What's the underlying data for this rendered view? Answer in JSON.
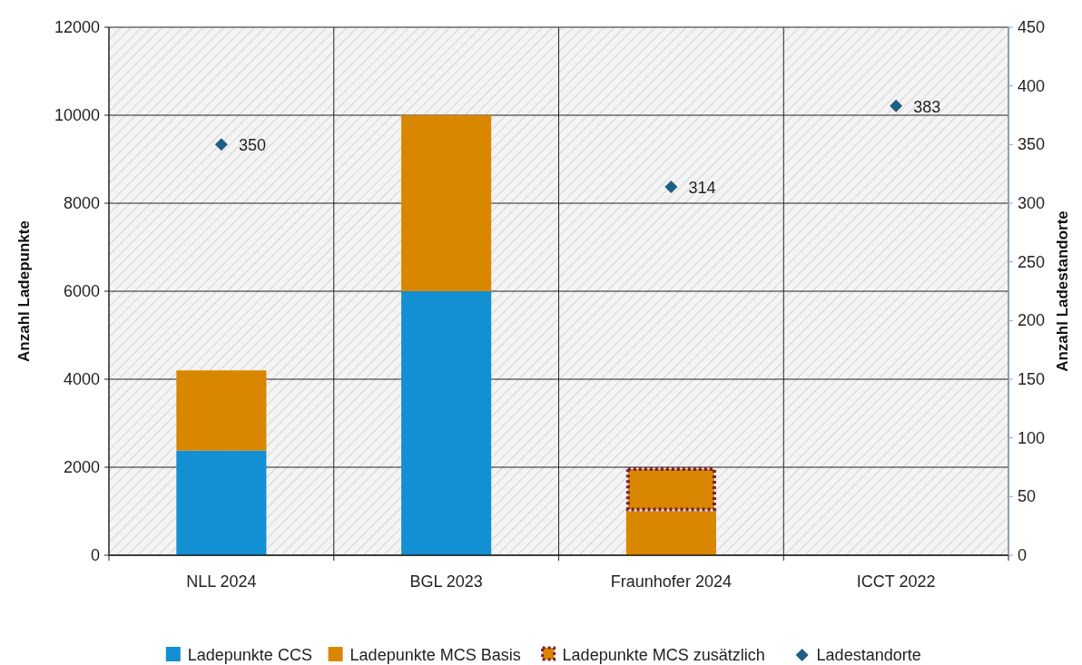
{
  "chart_data": {
    "type": "bar",
    "stacked": true,
    "categories": [
      "NLL 2024",
      "BGL 2023",
      "Fraunhofer 2024",
      "ICCT 2022"
    ],
    "series": [
      {
        "name": "Ladepunkte CCS",
        "color": "#138fd3",
        "values": [
          2380,
          6000,
          0,
          0
        ]
      },
      {
        "name": "Ladepunkte MCS Basis",
        "color": "#d98600",
        "values": [
          1820,
          4000,
          1000,
          0
        ]
      },
      {
        "name": "Ladepunkte MCS zusätzlich",
        "color": "#7a1f3d",
        "line_style": "dotted",
        "values": [
          0,
          0,
          1000,
          0
        ]
      },
      {
        "name": "Ladestandorte",
        "type": "scatter",
        "marker": "diamond",
        "axis": "y2",
        "color": "#1f5f82",
        "values": [
          350,
          null,
          314,
          383
        ],
        "value_labels": [
          "350",
          null,
          "314",
          "383"
        ]
      }
    ],
    "ylabel": "Anzahl Ladepunkte",
    "y2label": "Anzahl Ladestandorte",
    "ylim": [
      0,
      12000
    ],
    "yticks": [
      0,
      2000,
      4000,
      6000,
      8000,
      10000,
      12000
    ],
    "y2lim": [
      0,
      450
    ],
    "y2ticks": [
      0,
      50,
      100,
      150,
      200,
      250,
      300,
      350,
      400,
      450
    ],
    "grid": true,
    "legend": "bottom"
  }
}
